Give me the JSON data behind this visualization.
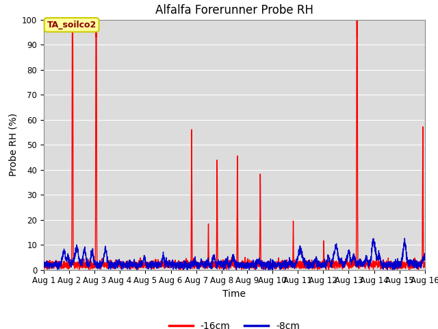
{
  "title": "Alfalfa Forerunner Probe RH",
  "xlabel": "Time",
  "ylabel": "Probe RH (%)",
  "ylim": [
    0,
    100
  ],
  "xlim": [
    0,
    15
  ],
  "xtick_labels": [
    "Aug 1",
    "Aug 2",
    "Aug 3",
    "Aug 4",
    "Aug 5",
    "Aug 6",
    "Aug 7",
    "Aug 8",
    "Aug 9",
    "Aug 10",
    "Aug 11",
    "Aug 12",
    "Aug 13",
    "Aug 14",
    "Aug 15",
    "Aug 16"
  ],
  "annotation_text": "TA_soilco2",
  "annotation_bg": "#FFFFA0",
  "annotation_border": "#CCCC00",
  "line_red_label": "-16cm",
  "line_blue_label": "-8cm",
  "line_red_color": "#FF0000",
  "line_blue_color": "#0000CC",
  "bg_color": "#DCDCDC",
  "grid_color": "#FFFFFF",
  "title_fontsize": 12,
  "axis_fontsize": 10,
  "tick_fontsize": 8.5,
  "linewidth_red": 1.0,
  "linewidth_blue": 1.0
}
